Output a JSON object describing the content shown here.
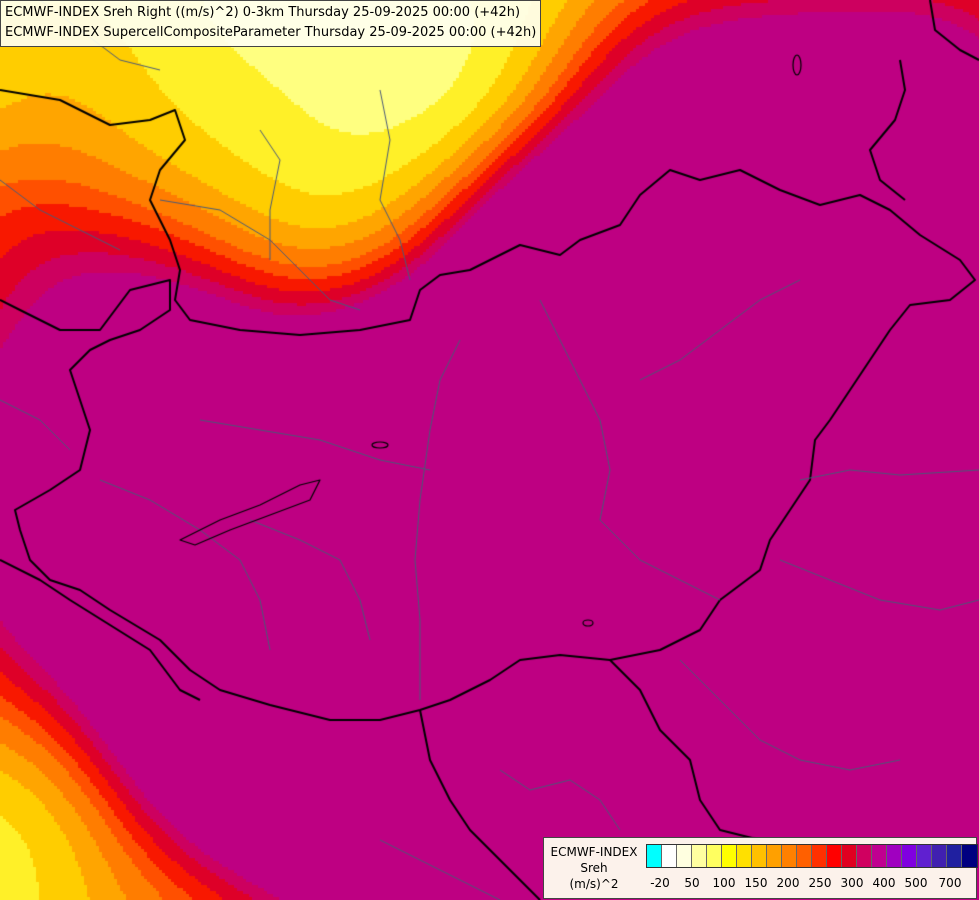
{
  "title": {
    "line1": "ECMWF-INDEX Sreh Right ((m/s)^2) 0-3km Thursday 25-09-2025 00:00 (+42h)",
    "line2": "ECMWF-INDEX SupercellCompositeParameter Thursday 25-09-2025 00:00 (+42h)"
  },
  "legend": {
    "source": "ECMWF-INDEX",
    "variable": "Sreh",
    "unit": "(m/s)^2",
    "colors": [
      "#00ffff",
      "#ffffff",
      "#ffffe0",
      "#ffffa0",
      "#ffff60",
      "#ffff00",
      "#ffe000",
      "#ffc000",
      "#ffa000",
      "#ff8000",
      "#ff6000",
      "#ff3000",
      "#ff0000",
      "#e00020",
      "#d00060",
      "#c00090",
      "#a000c0",
      "#8000e0",
      "#6020d0",
      "#4020b0",
      "#2020a0",
      "#000080"
    ],
    "ticks": [
      "-20",
      "50",
      "100",
      "150",
      "200",
      "250",
      "300",
      "400",
      "500",
      "700"
    ]
  }
}
